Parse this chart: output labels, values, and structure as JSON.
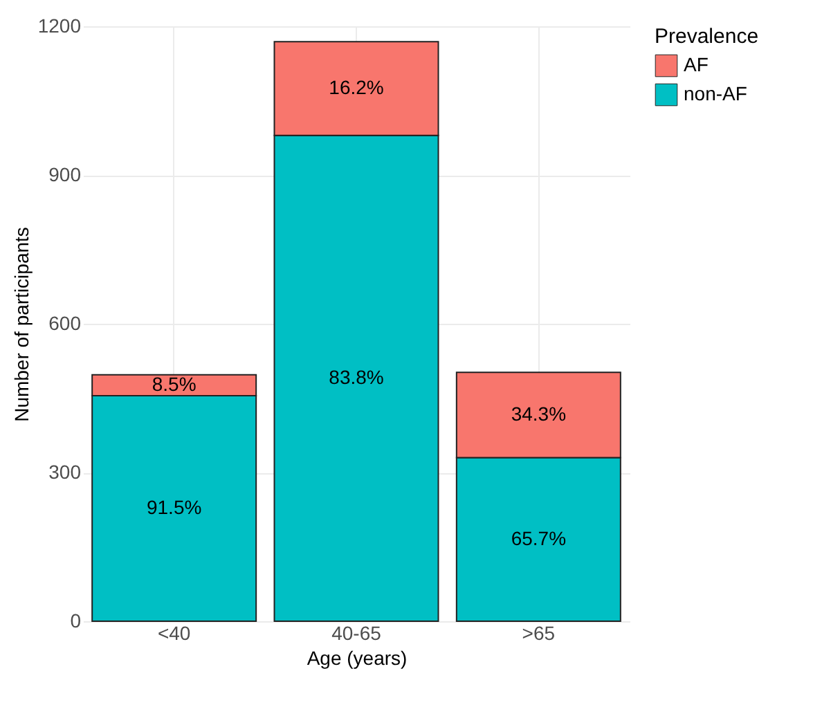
{
  "chart_data": {
    "type": "bar",
    "stacked": true,
    "xlabel": "Age (years)",
    "ylabel": "Number of participants",
    "legend_title": "Prevalence",
    "legend": "right",
    "grid": true,
    "categories": [
      "<40",
      "40-65",
      ">65"
    ],
    "ylim": [
      0,
      1200
    ],
    "yticks": [
      0,
      300,
      600,
      900,
      1200
    ],
    "series": [
      {
        "name": "non-AF",
        "color": "#00bfc4",
        "values": [
          455,
          980,
          330
        ]
      },
      {
        "name": "AF",
        "color": "#f8766d",
        "values": [
          42,
          189,
          172
        ]
      }
    ],
    "annotations": [
      "91.5%",
      "8.5%",
      "83.8%",
      "16.2%",
      "65.7%",
      "34.3%"
    ]
  }
}
